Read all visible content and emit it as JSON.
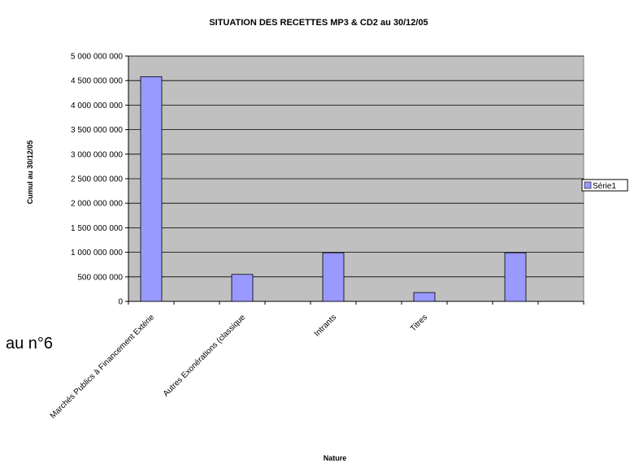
{
  "side_note": "au n°6",
  "chart_data": {
    "type": "bar",
    "title": "SITUATION DES RECETTES MP3 &  CD2 au 30/12/05",
    "xlabel": "Nature",
    "ylabel": "Cumul au 30/12/05",
    "ylim": [
      0,
      5000000000
    ],
    "yticks": [
      0,
      500000000,
      1000000000,
      1500000000,
      2000000000,
      2500000000,
      3000000000,
      3500000000,
      4000000000,
      4500000000,
      5000000000
    ],
    "ytick_labels": [
      "0",
      "500 000 000",
      "1 000 000 000",
      "1 500 000 000",
      "2 000 000 000",
      "2 500 000 000",
      "3 000 000 000",
      "3 500 000 000",
      "4 000 000 000",
      "4 500 000 000",
      "5 000 000 000"
    ],
    "categories": [
      "Marchés Publics à Financement Extérieur",
      "",
      "Autres Exonérations (classiques)",
      "",
      "Intrants",
      "",
      "Titres",
      "",
      "",
      ""
    ],
    "category_labels_shown": [
      "Marchés Publics à Financement Extérie",
      "",
      "Autres Exonérations (classique",
      "",
      "Intrants",
      "",
      "Titres",
      "",
      "",
      ""
    ],
    "series": [
      {
        "name": "Série1",
        "values": [
          4580000000,
          0,
          550000000,
          0,
          990000000,
          0,
          180000000,
          0,
          990000000,
          0
        ]
      }
    ],
    "grid": true,
    "legend_position": "right",
    "colors": {
      "bar": "#9999ff",
      "plot_bg": "#c0c0c0",
      "grid": "#000000"
    }
  }
}
